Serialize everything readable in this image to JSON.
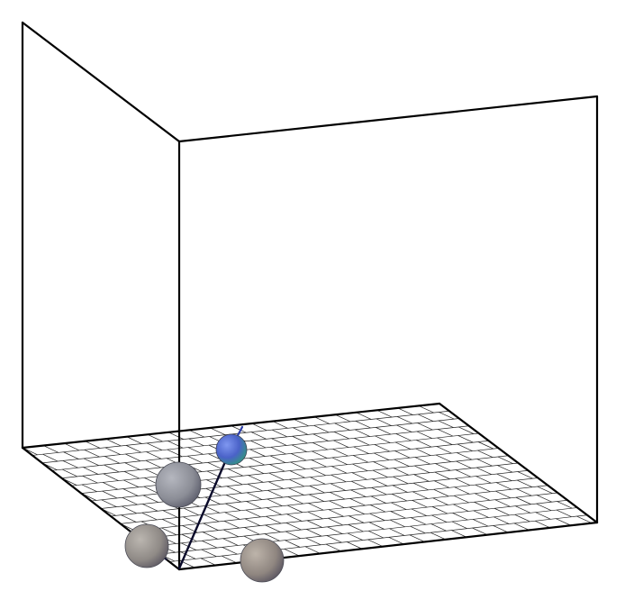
{
  "scene": {
    "background_color": "#ffffff",
    "frame_color": "#000000",
    "floor_grid": {
      "rows": 16,
      "columns": 20,
      "line_color": "#222222",
      "fill_color": "#ffffff"
    },
    "spheres": [
      {
        "id": "sphere-blue",
        "role": "molecule-center",
        "color": "#4a62c8",
        "highlight": "#2f9a7a"
      },
      {
        "id": "sphere-gray-upper",
        "role": "atom",
        "color": "#8b8d96"
      },
      {
        "id": "sphere-gray-left",
        "role": "atom",
        "color": "#8f8a86"
      },
      {
        "id": "sphere-gray-right",
        "role": "atom",
        "color": "#8f8680"
      }
    ],
    "bond_color": "#0a0a2a"
  }
}
